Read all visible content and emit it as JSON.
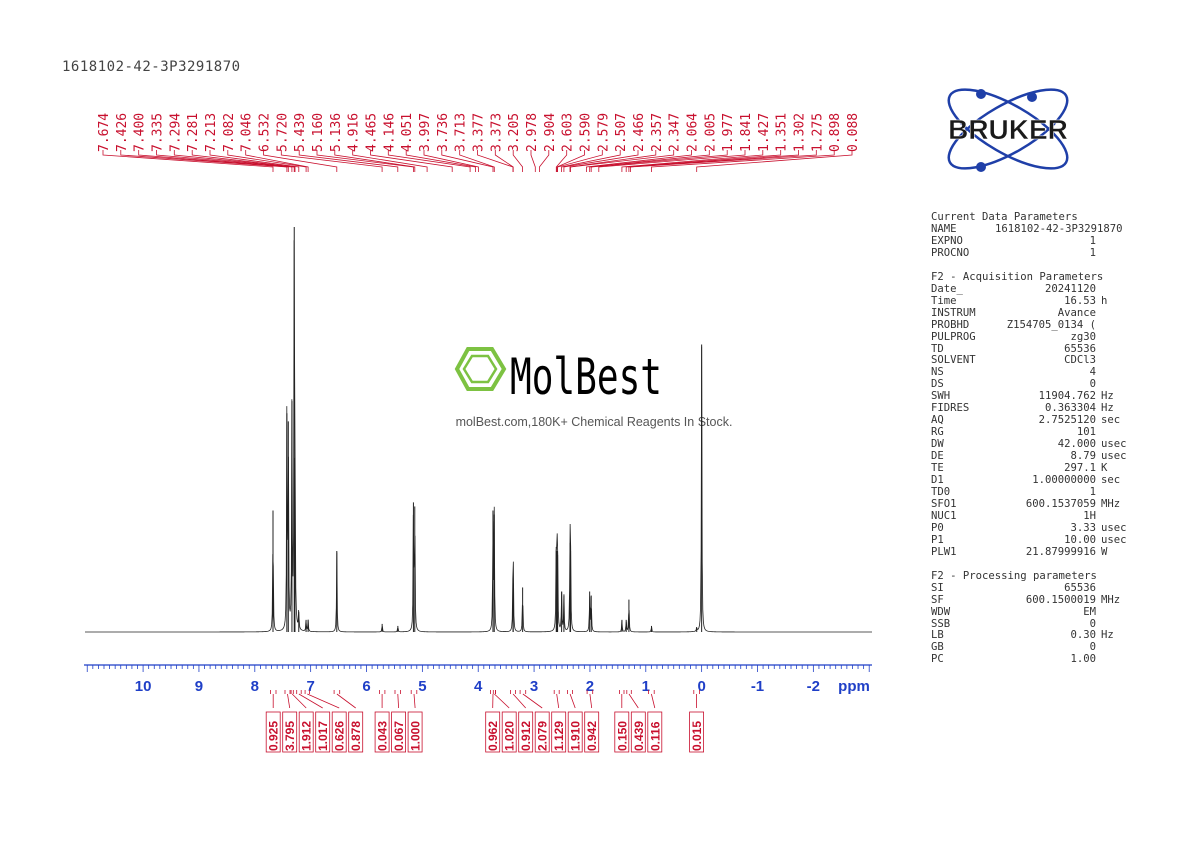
{
  "sample_id": "1618102-42-3P3291870",
  "brand": {
    "logo_text": "BRUKER",
    "color": "#1f3fa8"
  },
  "watermark": {
    "name": "MolBest",
    "tagline": "molBest.com,180K+ Chemical Reagents In Stock.",
    "icon_color": "#7dc242"
  },
  "colors": {
    "peak_labels": "#c8102e",
    "axis": "#1f3fc7",
    "spectrum": "#222222"
  },
  "chart_data": {
    "type": "line",
    "title": "",
    "xlabel": "ppm",
    "ylabel": "",
    "x_reversed": true,
    "xlim": [
      11.04,
      -3.05
    ],
    "major_ticks": [
      10,
      9,
      8,
      7,
      6,
      5,
      4,
      3,
      2,
      1,
      0,
      -1,
      -2
    ],
    "tick_labels": [
      "10",
      "9",
      "8",
      "7",
      "6",
      "5",
      "4",
      "3",
      "2",
      "1",
      "0",
      "-1",
      "-2"
    ],
    "unit_label": "ppm",
    "peak_labels": [
      "7.674",
      "7.426",
      "7.400",
      "7.335",
      "7.294",
      "7.281",
      "7.213",
      "7.082",
      "7.046",
      "6.532",
      "5.720",
      "5.439",
      "5.160",
      "5.136",
      "4.916",
      "4.465",
      "4.146",
      "4.051",
      "3.997",
      "3.736",
      "3.713",
      "3.377",
      "3.373",
      "3.205",
      "2.978",
      "2.904",
      "2.603",
      "2.590",
      "2.579",
      "2.507",
      "2.466",
      "2.357",
      "2.347",
      "2.064",
      "2.005",
      "1.977",
      "1.841",
      "1.427",
      "1.351",
      "1.302",
      "1.275",
      "0.898",
      "0.088"
    ],
    "peaks": [
      {
        "ppm": 7.674,
        "height": 0.3
      },
      {
        "ppm": 7.426,
        "height": 0.54
      },
      {
        "ppm": 7.4,
        "height": 0.52
      },
      {
        "ppm": 7.335,
        "height": 0.57
      },
      {
        "ppm": 7.294,
        "height": 1.0
      },
      {
        "ppm": 7.281,
        "height": 0.43
      },
      {
        "ppm": 7.213,
        "height": 0.05
      },
      {
        "ppm": 7.082,
        "height": 0.03
      },
      {
        "ppm": 7.046,
        "height": 0.03
      },
      {
        "ppm": 6.532,
        "height": 0.2
      },
      {
        "ppm": 5.72,
        "height": 0.02
      },
      {
        "ppm": 5.439,
        "height": 0.015
      },
      {
        "ppm": 5.16,
        "height": 0.32
      },
      {
        "ppm": 5.136,
        "height": 0.31
      },
      {
        "ppm": 3.736,
        "height": 0.3
      },
      {
        "ppm": 3.713,
        "height": 0.29
      },
      {
        "ppm": 3.377,
        "height": 0.13
      },
      {
        "ppm": 3.373,
        "height": 0.12
      },
      {
        "ppm": 3.205,
        "height": 0.11
      },
      {
        "ppm": 2.603,
        "height": 0.21
      },
      {
        "ppm": 2.59,
        "height": 0.2
      },
      {
        "ppm": 2.579,
        "height": 0.19
      },
      {
        "ppm": 2.507,
        "height": 0.1
      },
      {
        "ppm": 2.466,
        "height": 0.09
      },
      {
        "ppm": 2.357,
        "height": 0.22
      },
      {
        "ppm": 2.347,
        "height": 0.2
      },
      {
        "ppm": 2.005,
        "height": 0.1
      },
      {
        "ppm": 1.977,
        "height": 0.09
      },
      {
        "ppm": 1.427,
        "height": 0.03
      },
      {
        "ppm": 1.351,
        "height": 0.03
      },
      {
        "ppm": 1.302,
        "height": 0.08
      },
      {
        "ppm": 0.898,
        "height": 0.015
      },
      {
        "ppm": 0.088,
        "height": 0.01
      },
      {
        "ppm": 0.0,
        "height": 0.71
      }
    ],
    "integrals": [
      {
        "value": "0.925",
        "ppm": 7.67,
        "from": 7.72,
        "to": 7.62
      },
      {
        "value": "3.795",
        "ppm": 7.41,
        "from": 7.46,
        "to": 7.37
      },
      {
        "value": "1.912",
        "ppm": 7.33,
        "from": 7.35,
        "to": 7.31
      },
      {
        "value": "1.017",
        "ppm": 7.21,
        "from": 7.25,
        "to": 7.17
      },
      {
        "value": "0.626",
        "ppm": 7.06,
        "from": 7.1,
        "to": 7.02
      },
      {
        "value": "0.878",
        "ppm": 6.53,
        "from": 6.58,
        "to": 6.48
      },
      {
        "value": "0.043",
        "ppm": 5.72,
        "from": 5.77,
        "to": 5.67
      },
      {
        "value": "0.067",
        "ppm": 5.44,
        "from": 5.49,
        "to": 5.39
      },
      {
        "value": "1.000",
        "ppm": 5.15,
        "from": 5.2,
        "to": 5.1
      },
      {
        "value": "0.962",
        "ppm": 3.74,
        "from": 3.78,
        "to": 3.69
      },
      {
        "value": "1.020",
        "ppm": 3.71,
        "from": 3.73,
        "to": 3.69
      },
      {
        "value": "0.912",
        "ppm": 3.37,
        "from": 3.42,
        "to": 3.33
      },
      {
        "value": "2.079",
        "ppm": 3.2,
        "from": 3.25,
        "to": 3.15
      },
      {
        "value": "1.129",
        "ppm": 2.59,
        "from": 2.64,
        "to": 2.55
      },
      {
        "value": "1.910",
        "ppm": 2.35,
        "from": 2.4,
        "to": 2.31
      },
      {
        "value": "0.942",
        "ppm": 2.0,
        "from": 2.05,
        "to": 1.95
      },
      {
        "value": "0.150",
        "ppm": 1.43,
        "from": 1.47,
        "to": 1.39
      },
      {
        "value": "0.439",
        "ppm": 1.3,
        "from": 1.34,
        "to": 1.26
      },
      {
        "value": "0.116",
        "ppm": 0.9,
        "from": 0.95,
        "to": 0.85
      },
      {
        "value": "0.015",
        "ppm": 0.09,
        "from": 0.14,
        "to": 0.04
      }
    ]
  },
  "parameters": {
    "current": {
      "title": "Current Data Parameters",
      "rows": [
        {
          "key": "NAME",
          "value": "1618102-42-3P3291870",
          "unit": ""
        },
        {
          "key": "EXPNO",
          "value": "1",
          "unit": ""
        },
        {
          "key": "PROCNO",
          "value": "1",
          "unit": ""
        }
      ]
    },
    "acquisition": {
      "title": "F2 - Acquisition Parameters",
      "rows": [
        {
          "key": "Date_",
          "value": "20241120",
          "unit": ""
        },
        {
          "key": "Time",
          "value": "16.53",
          "unit": "h"
        },
        {
          "key": "INSTRUM",
          "value": "Avance",
          "unit": ""
        },
        {
          "key": "PROBHD",
          "value": "Z154705_0134 (",
          "unit": ""
        },
        {
          "key": "PULPROG",
          "value": "zg30",
          "unit": ""
        },
        {
          "key": "TD",
          "value": "65536",
          "unit": ""
        },
        {
          "key": "SOLVENT",
          "value": "CDCl3",
          "unit": ""
        },
        {
          "key": "NS",
          "value": "4",
          "unit": ""
        },
        {
          "key": "DS",
          "value": "0",
          "unit": ""
        },
        {
          "key": "SWH",
          "value": "11904.762",
          "unit": "Hz"
        },
        {
          "key": "FIDRES",
          "value": "0.363304",
          "unit": "Hz"
        },
        {
          "key": "AQ",
          "value": "2.7525120",
          "unit": "sec"
        },
        {
          "key": "RG",
          "value": "101",
          "unit": ""
        },
        {
          "key": "DW",
          "value": "42.000",
          "unit": "usec"
        },
        {
          "key": "DE",
          "value": "8.79",
          "unit": "usec"
        },
        {
          "key": "TE",
          "value": "297.1",
          "unit": "K"
        },
        {
          "key": "D1",
          "value": "1.00000000",
          "unit": "sec"
        },
        {
          "key": "TD0",
          "value": "1",
          "unit": ""
        },
        {
          "key": "SFO1",
          "value": "600.1537059",
          "unit": "MHz"
        },
        {
          "key": "NUC1",
          "value": "1H",
          "unit": ""
        },
        {
          "key": "P0",
          "value": "3.33",
          "unit": "usec"
        },
        {
          "key": "P1",
          "value": "10.00",
          "unit": "usec"
        },
        {
          "key": "PLW1",
          "value": "21.87999916",
          "unit": "W"
        }
      ]
    },
    "processing": {
      "title": "F2 - Processing parameters",
      "rows": [
        {
          "key": "SI",
          "value": "65536",
          "unit": ""
        },
        {
          "key": "SF",
          "value": "600.1500019",
          "unit": "MHz"
        },
        {
          "key": "WDW",
          "value": "EM",
          "unit": ""
        },
        {
          "key": "SSB",
          "value": "0",
          "unit": ""
        },
        {
          "key": "LB",
          "value": "0.30",
          "unit": "Hz"
        },
        {
          "key": "GB",
          "value": "0",
          "unit": ""
        },
        {
          "key": "PC",
          "value": "1.00",
          "unit": ""
        }
      ]
    }
  }
}
